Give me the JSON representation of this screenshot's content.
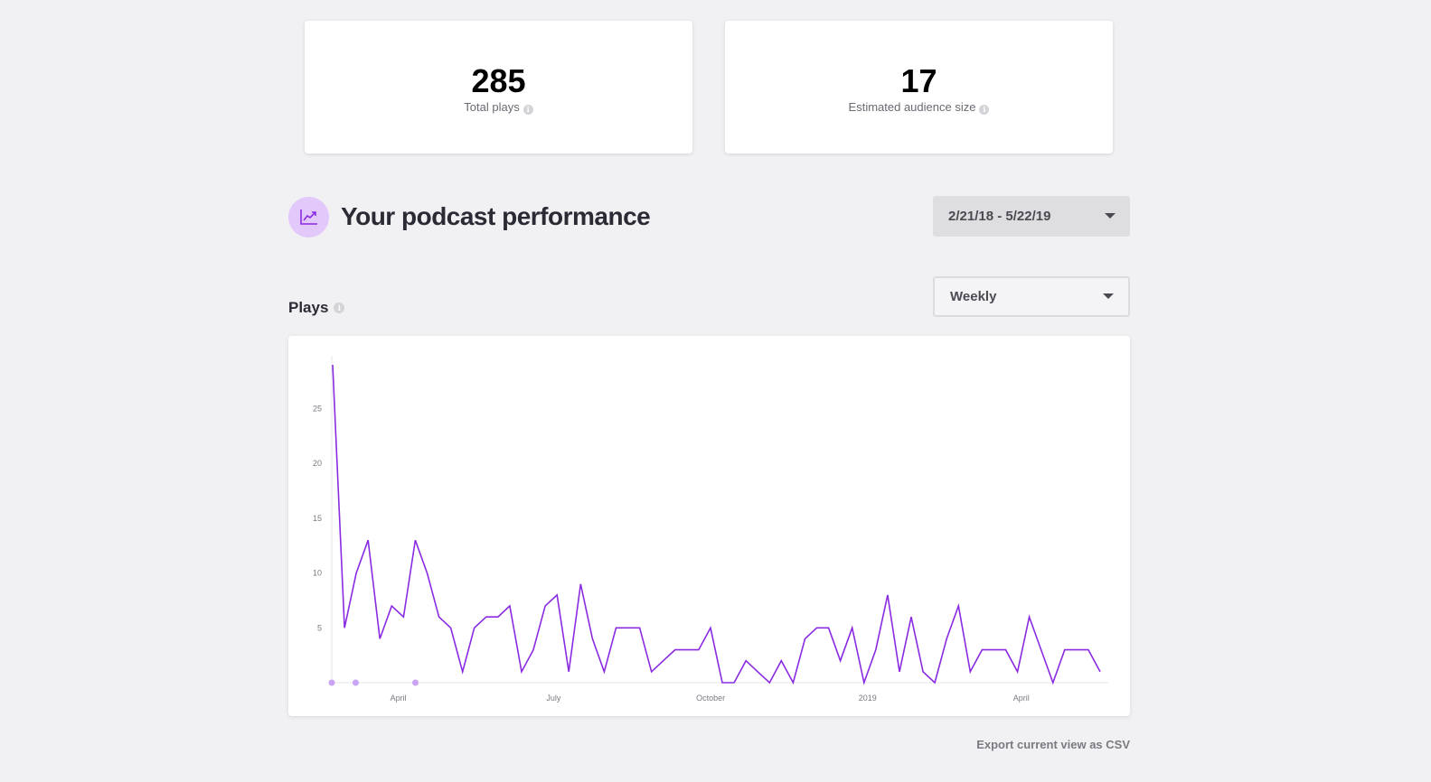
{
  "stats": {
    "total_plays": {
      "value": "285",
      "label": "Total plays"
    },
    "audience": {
      "value": "17",
      "label": "Estimated audience size"
    }
  },
  "info_glyph": "i",
  "performance": {
    "title": "Your podcast performance",
    "icon": "chart-trend-icon",
    "date_range": "2/21/18 - 5/22/19",
    "interval": "Weekly"
  },
  "plays_label": "Plays",
  "export_label": "Export current view as CSV",
  "colors": {
    "accent": "#8a2be2",
    "marker": "#c9a3f5",
    "icon_bg": "#e2c8fb"
  },
  "chart_data": {
    "type": "line",
    "ylim": [
      0,
      29
    ],
    "yticks": [
      5,
      10,
      15,
      20,
      25
    ],
    "xticks": [
      {
        "label": "April",
        "date": "2018-04-01"
      },
      {
        "label": "July",
        "date": "2018-07-01"
      },
      {
        "label": "October",
        "date": "2018-10-01"
      },
      {
        "label": "2019",
        "date": "2019-01-01"
      },
      {
        "label": "April",
        "date": "2019-04-01"
      }
    ],
    "x_range": [
      "2018-02-21",
      "2019-05-22"
    ],
    "markers": [
      "2018-02-21",
      "2018-03-07",
      "2018-04-11"
    ],
    "series": [
      {
        "values": [
          29,
          5,
          10,
          13,
          4,
          7,
          6,
          13,
          10,
          6,
          5,
          1,
          5,
          6,
          6,
          7,
          1,
          3,
          7,
          8,
          1,
          9,
          4,
          1,
          5,
          5,
          5,
          1,
          2,
          3,
          3,
          3,
          5,
          0,
          0,
          2,
          1,
          0,
          2,
          0,
          4,
          5,
          5,
          2,
          5,
          0,
          3,
          8,
          1,
          6,
          1,
          0,
          4,
          7,
          1,
          3,
          3,
          3,
          1,
          6,
          3,
          0,
          3,
          3,
          3,
          1
        ]
      }
    ]
  }
}
